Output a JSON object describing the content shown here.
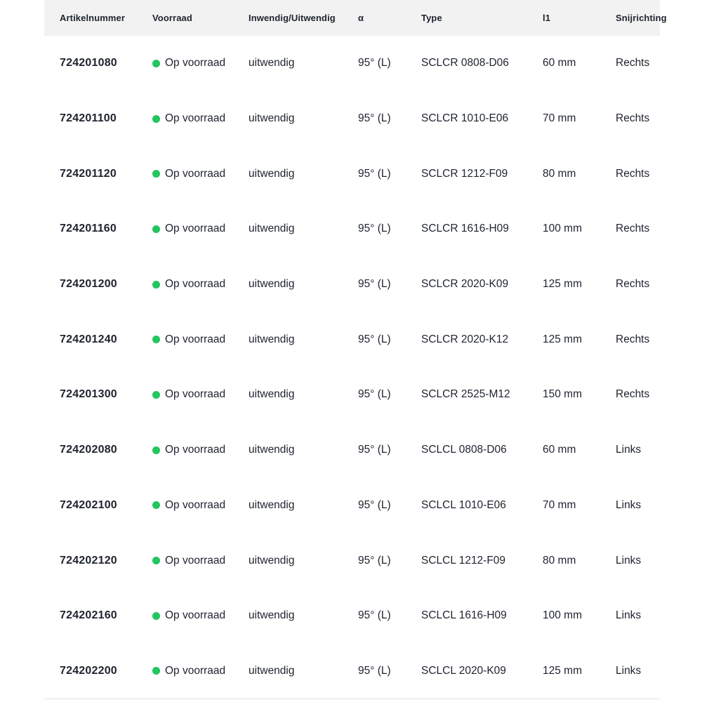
{
  "colors": {
    "stock_green": "#22c55e",
    "header_bg": "#f2f2f2",
    "text": "#1e232e",
    "border": "#e3e3e3"
  },
  "table": {
    "columns": [
      {
        "key": "artikelnummer",
        "label": "Artikelnummer"
      },
      {
        "key": "voorraad",
        "label": "Voorraad"
      },
      {
        "key": "inwendig_uitwendig",
        "label": "Inwendig/Uitwendig"
      },
      {
        "key": "alpha",
        "label": "α"
      },
      {
        "key": "type",
        "label": "Type"
      },
      {
        "key": "l1",
        "label": "l1"
      },
      {
        "key": "snijrichting",
        "label": "Snijrichting"
      }
    ],
    "rows": [
      {
        "artikelnummer": "724201080",
        "voorraad": "Op voorraad",
        "inwendig_uitwendig": "uitwendig",
        "alpha": "95° (L)",
        "type": "SCLCR 0808-D06",
        "l1": "60 mm",
        "snijrichting": "Rechts"
      },
      {
        "artikelnummer": "724201100",
        "voorraad": "Op voorraad",
        "inwendig_uitwendig": "uitwendig",
        "alpha": "95° (L)",
        "type": "SCLCR 1010-E06",
        "l1": "70 mm",
        "snijrichting": "Rechts"
      },
      {
        "artikelnummer": "724201120",
        "voorraad": "Op voorraad",
        "inwendig_uitwendig": "uitwendig",
        "alpha": "95° (L)",
        "type": "SCLCR 1212-F09",
        "l1": "80 mm",
        "snijrichting": "Rechts"
      },
      {
        "artikelnummer": "724201160",
        "voorraad": "Op voorraad",
        "inwendig_uitwendig": "uitwendig",
        "alpha": "95° (L)",
        "type": "SCLCR 1616-H09",
        "l1": "100 mm",
        "snijrichting": "Rechts"
      },
      {
        "artikelnummer": "724201200",
        "voorraad": "Op voorraad",
        "inwendig_uitwendig": "uitwendig",
        "alpha": "95° (L)",
        "type": "SCLCR 2020-K09",
        "l1": "125 mm",
        "snijrichting": "Rechts"
      },
      {
        "artikelnummer": "724201240",
        "voorraad": "Op voorraad",
        "inwendig_uitwendig": "uitwendig",
        "alpha": "95° (L)",
        "type": "SCLCR 2020-K12",
        "l1": "125 mm",
        "snijrichting": "Rechts"
      },
      {
        "artikelnummer": "724201300",
        "voorraad": "Op voorraad",
        "inwendig_uitwendig": "uitwendig",
        "alpha": "95° (L)",
        "type": "SCLCR 2525-M12",
        "l1": "150 mm",
        "snijrichting": "Rechts"
      },
      {
        "artikelnummer": "724202080",
        "voorraad": "Op voorraad",
        "inwendig_uitwendig": "uitwendig",
        "alpha": "95° (L)",
        "type": "SCLCL 0808-D06",
        "l1": "60 mm",
        "snijrichting": "Links"
      },
      {
        "artikelnummer": "724202100",
        "voorraad": "Op voorraad",
        "inwendig_uitwendig": "uitwendig",
        "alpha": "95° (L)",
        "type": "SCLCL 1010-E06",
        "l1": "70 mm",
        "snijrichting": "Links"
      },
      {
        "artikelnummer": "724202120",
        "voorraad": "Op voorraad",
        "inwendig_uitwendig": "uitwendig",
        "alpha": "95° (L)",
        "type": "SCLCL 1212-F09",
        "l1": "80 mm",
        "snijrichting": "Links"
      },
      {
        "artikelnummer": "724202160",
        "voorraad": "Op voorraad",
        "inwendig_uitwendig": "uitwendig",
        "alpha": "95° (L)",
        "type": "SCLCL 1616-H09",
        "l1": "100 mm",
        "snijrichting": "Links"
      },
      {
        "artikelnummer": "724202200",
        "voorraad": "Op voorraad",
        "inwendig_uitwendig": "uitwendig",
        "alpha": "95° (L)",
        "type": "SCLCL 2020-K09",
        "l1": "125 mm",
        "snijrichting": "Links"
      }
    ]
  }
}
